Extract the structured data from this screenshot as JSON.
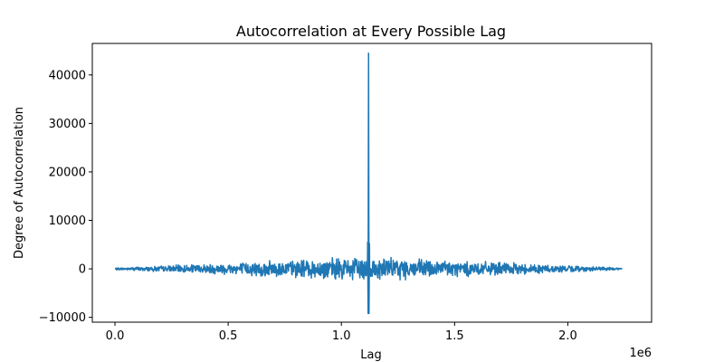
{
  "chart_data": {
    "type": "line",
    "title": "Autocorrelation at Every Possible Lag",
    "xlabel": "Lag",
    "ylabel": "Degree of Autocorrelation",
    "x_offset_label": "1e6",
    "xlim": [
      -0.1,
      2.37
    ],
    "ylim": [
      -11000,
      46500
    ],
    "x_ticks": [
      0.0,
      0.5,
      1.0,
      1.5,
      2.0
    ],
    "x_tick_labels": [
      "0.0",
      "0.5",
      "1.0",
      "1.5",
      "2.0"
    ],
    "y_ticks": [
      -10000,
      0,
      10000,
      20000,
      30000,
      40000
    ],
    "y_tick_labels": [
      "−10000",
      "0",
      "10000",
      "20000",
      "30000",
      "40000"
    ],
    "grid": false,
    "series": [
      {
        "color": "#1f77b4",
        "x_range": [
          0.0,
          2.24
        ],
        "peak": {
          "x": 1.12,
          "y": 44500
        },
        "min": {
          "x": 1.12,
          "y": -9200
        },
        "noise_envelope_max": 2800
      }
    ]
  }
}
